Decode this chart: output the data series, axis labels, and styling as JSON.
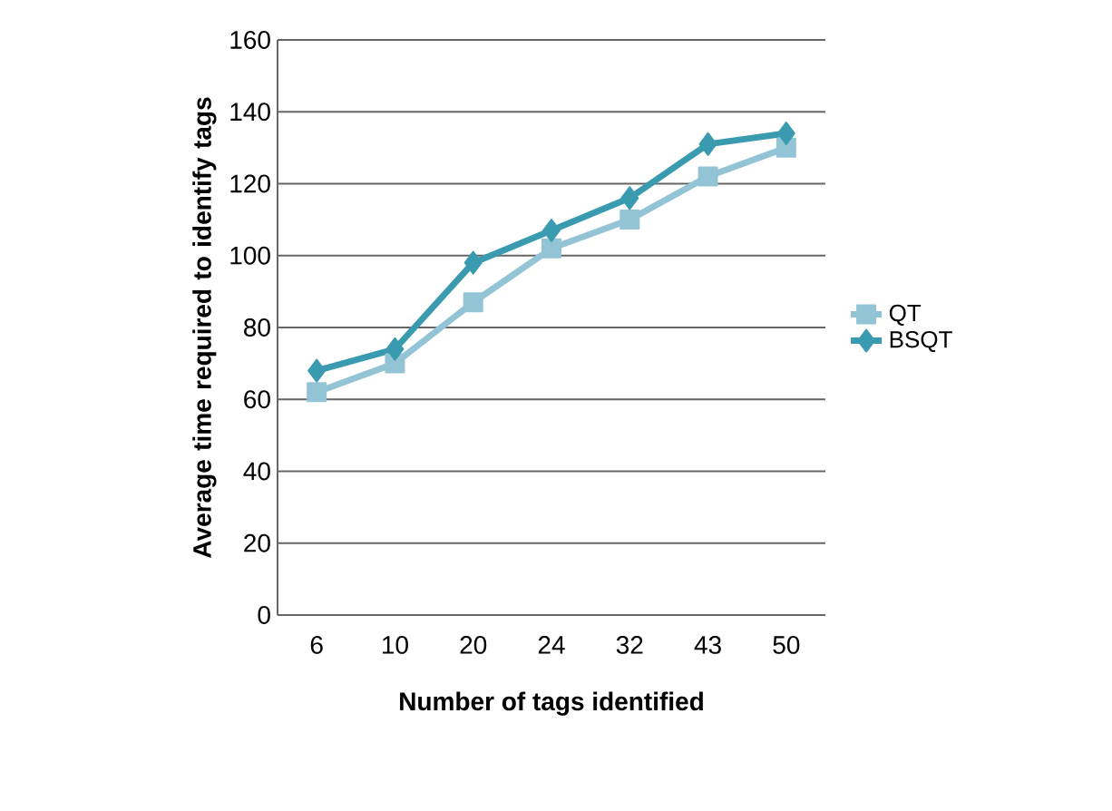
{
  "chart_data": {
    "type": "line",
    "xlabel": "Number of tags identified",
    "ylabel": "Average time required to identify tags",
    "categories": [
      "6",
      "10",
      "20",
      "24",
      "32",
      "43",
      "50"
    ],
    "series": [
      {
        "name": "QT",
        "color": "#93c4d6",
        "marker": "square",
        "values": [
          62,
          70,
          87,
          102,
          110,
          122,
          130
        ]
      },
      {
        "name": "BSQT",
        "color": "#3a9bb0",
        "marker": "diamond",
        "values": [
          68,
          74,
          98,
          107,
          116,
          131,
          134
        ]
      }
    ],
    "ylim": [
      0,
      160
    ],
    "yticks": [
      0,
      20,
      40,
      60,
      80,
      100,
      120,
      140,
      160
    ],
    "grid": "y",
    "legend": "right"
  }
}
